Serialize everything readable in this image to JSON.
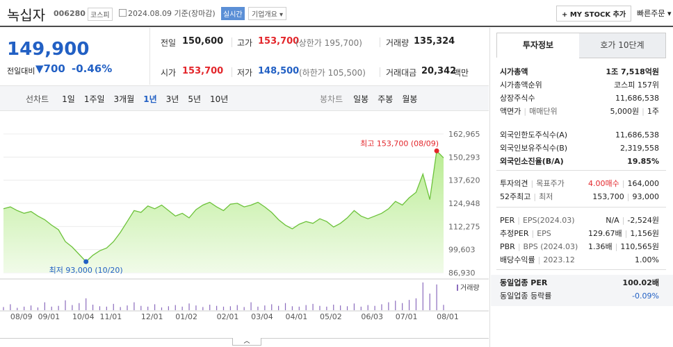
{
  "header": {
    "name": "녹십자",
    "code": "006280",
    "market": "코스피",
    "date": "2024.08.09 기준(장마감)",
    "realtime": "실시간",
    "company_info": "기업개요",
    "my_stock": "+ MY STOCK 추가",
    "quick_order": "빠른주문"
  },
  "price": {
    "current": "149,900",
    "change_label": "전일대비",
    "change": "700",
    "change_rate": "-0.46%"
  },
  "summary": [
    [
      {
        "label": "전일",
        "value": "150,600"
      },
      {
        "label": "고가",
        "value": "153,700",
        "limit": "(상한가 195,700)"
      },
      {
        "label": "거래량",
        "value": "135,324"
      }
    ],
    [
      {
        "label": "시가",
        "value": "153,700"
      },
      {
        "label": "저가",
        "value": "148,500",
        "limit": "(하한가 105,500)"
      },
      {
        "label": "거래대금",
        "value": "20,342",
        "unit": "백만"
      }
    ]
  ],
  "chart_tabs": {
    "line_label": "선차트",
    "line_periods": [
      "1일",
      "1주일",
      "3개월",
      "1년",
      "3년",
      "5년",
      "10년"
    ],
    "selected_index": 3,
    "candle_label": "봉차트",
    "candle_periods": [
      "일봉",
      "주봉",
      "월봉"
    ]
  },
  "chart_data": {
    "type": "line",
    "categories": [
      null,
      null,
      "08/09",
      null,
      null,
      null,
      "09/01",
      null,
      null,
      null,
      null,
      "10/04",
      null,
      null,
      null,
      "11/01",
      null,
      null,
      null,
      null,
      null,
      "12/01",
      null,
      null,
      null,
      null,
      "01/02",
      null,
      null,
      null,
      null,
      null,
      "02/01",
      null,
      null,
      null,
      null,
      "03/04",
      null,
      null,
      null,
      null,
      "04/01",
      null,
      null,
      null,
      null,
      "05/02",
      null,
      null,
      null,
      null,
      null,
      "06/03",
      null,
      null,
      null,
      null,
      "07/01",
      null,
      null,
      null,
      null,
      null,
      "08/01"
    ],
    "series": [
      {
        "color": "#6cc23a",
        "values": [
          122000,
          123000,
          121000,
          119500,
          120500,
          118000,
          116000,
          113000,
          110500,
          104000,
          101000,
          97000,
          93000,
          96500,
          99000,
          100500,
          104000,
          109000,
          115000,
          121000,
          120000,
          123500,
          122000,
          124000,
          121000,
          118000,
          119500,
          117000,
          121500,
          124000,
          125500,
          123000,
          121000,
          124500,
          125000,
          123000,
          124000,
          125500,
          123000,
          120000,
          116000,
          113000,
          111000,
          113500,
          115000,
          114000,
          116500,
          115000,
          112000,
          114000,
          117000,
          121000,
          118000,
          116500,
          118000,
          119500,
          122000,
          126000,
          124000,
          128000,
          131000,
          141000,
          127000,
          153700,
          149900
        ]
      }
    ],
    "ylim": [
      86930,
      162965
    ],
    "yticks": [
      {
        "value": 86930,
        "label": "86,930"
      },
      {
        "value": 99603,
        "label": "99,603"
      },
      {
        "value": 112275,
        "label": "112,275"
      },
      {
        "value": 124948,
        "label": "124,948"
      },
      {
        "value": 137620,
        "label": "137,620"
      },
      {
        "value": 150293,
        "label": "150,293"
      },
      {
        "value": 162965,
        "label": "162,965"
      }
    ],
    "grid": true,
    "annotations": [
      {
        "text": "최고 153,700 (08/09)",
        "value": 153700,
        "color": "#e3262b"
      },
      {
        "text": "최저 93,000 (10/20)",
        "value": 93000,
        "color": "#2260c4"
      }
    ],
    "volume": {
      "name": "거래량",
      "color": "#8b6bbd",
      "values": [
        80000,
        150000,
        60000,
        90000,
        120000,
        70000,
        200000,
        90000,
        110000,
        250000,
        130000,
        180000,
        300000,
        140000,
        100000,
        90000,
        160000,
        80000,
        120000,
        200000,
        110000,
        90000,
        150000,
        70000,
        100000,
        130000,
        90000,
        170000,
        120000,
        80000,
        140000,
        110000,
        90000,
        100000,
        130000,
        80000,
        200000,
        90000,
        120000,
        150000,
        110000,
        180000,
        100000,
        90000,
        130000,
        160000,
        110000,
        90000,
        140000,
        120000,
        100000,
        170000,
        90000,
        130000,
        110000,
        150000,
        200000,
        240000,
        180000,
        260000,
        300000,
        700000,
        420000,
        650000,
        135324
      ]
    }
  },
  "info_panel": {
    "tabs": [
      "투자정보",
      "호가 10단계"
    ],
    "sections": [
      [
        {
          "label": [
            "시가총액"
          ],
          "value": [
            "1조 7,518억원"
          ],
          "emphasis": true
        },
        {
          "label": [
            "시가총액순위"
          ],
          "value": [
            "코스피 157위"
          ]
        },
        {
          "label": [
            "상장주식수"
          ],
          "value": [
            "11,686,538"
          ]
        },
        {
          "label": [
            "액면가",
            "매매단위"
          ],
          "value": [
            "5,000원",
            "1주"
          ]
        }
      ],
      [
        {
          "label": [
            "외국인한도주식수(A)"
          ],
          "value": [
            "11,686,538"
          ]
        },
        {
          "label": [
            "외국인보유주식수(B)"
          ],
          "value": [
            "2,319,558"
          ]
        },
        {
          "label": [
            "외국인소진율(B/A)"
          ],
          "value": [
            "19.85%"
          ],
          "emphasis": true
        }
      ],
      [
        {
          "label": [
            "투자의견",
            "목표주가"
          ],
          "value": [
            "4.00매수",
            "164,000"
          ],
          "tone": "up"
        },
        {
          "label": [
            "52주최고",
            "최저"
          ],
          "value": [
            "153,700",
            "93,000"
          ]
        }
      ],
      [
        {
          "label": [
            "PER",
            "EPS(2024.03)"
          ],
          "value": [
            "N/A",
            "-2,524원"
          ]
        },
        {
          "label": [
            "추정PER",
            "EPS"
          ],
          "value": [
            "129.67배",
            "1,156원"
          ]
        },
        {
          "label": [
            "PBR",
            "BPS (2024.03)"
          ],
          "value": [
            "1.36배",
            "110,565원"
          ]
        },
        {
          "label": [
            "배당수익률",
            "2023.12"
          ],
          "value": [
            "1.00%"
          ]
        }
      ],
      [
        {
          "label": [
            "동일업종 PER"
          ],
          "value": [
            "100.02배"
          ],
          "emphasis": true
        },
        {
          "label": [
            "동일업종 등락률"
          ],
          "value": [
            "-0.09%"
          ],
          "tone": "down"
        }
      ]
    ]
  }
}
